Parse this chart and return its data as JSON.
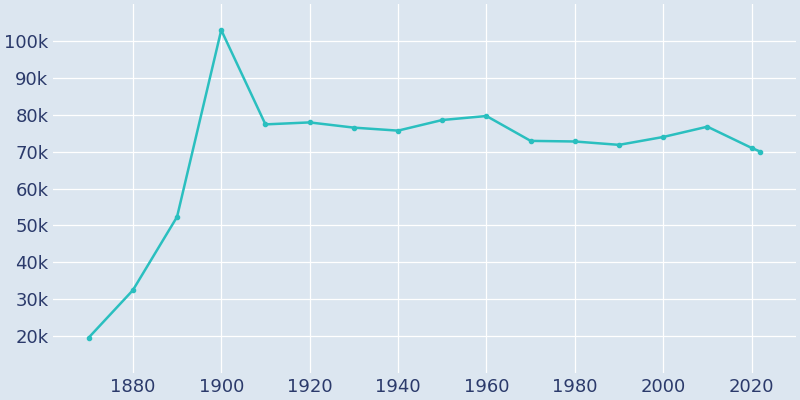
{
  "years": [
    1870,
    1880,
    1890,
    1900,
    1910,
    1920,
    1930,
    1940,
    1950,
    1960,
    1970,
    1980,
    1990,
    2000,
    2010,
    2020,
    2022
  ],
  "population": [
    19565,
    32431,
    52324,
    102979,
    77403,
    77939,
    76523,
    75711,
    78588,
    79673,
    72931,
    72765,
    71852,
    73990,
    76780,
    71016,
    70000
  ],
  "line_color": "#2abfbf",
  "marker": "o",
  "marker_size": 3,
  "linewidth": 1.8,
  "background_color": "#dce6f0",
  "axes_background": "#dce6f0",
  "grid_color": "#ffffff",
  "xlabel": "",
  "ylabel": "",
  "xlim": [
    1862,
    2030
  ],
  "ylim": [
    10000,
    110000
  ],
  "ytick_values": [
    20000,
    30000,
    40000,
    50000,
    60000,
    70000,
    80000,
    90000,
    100000
  ],
  "xtick_values": [
    1880,
    1900,
    1920,
    1940,
    1960,
    1980,
    2000,
    2020
  ],
  "tick_label_color": "#2b3a6b",
  "tick_fontsize": 13
}
